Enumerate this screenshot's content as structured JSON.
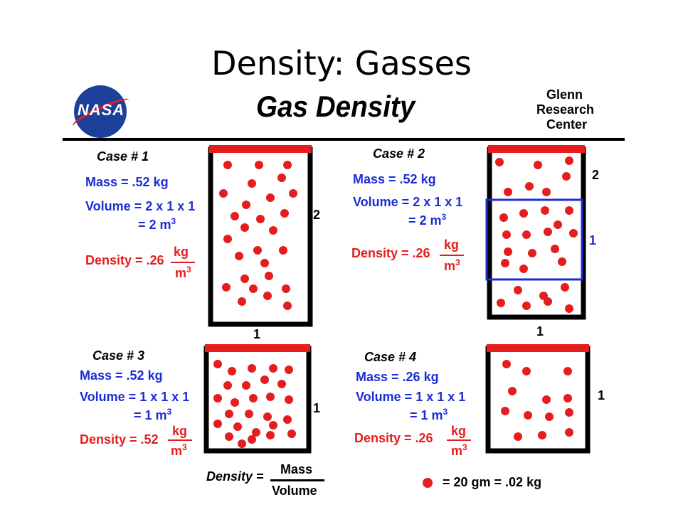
{
  "slide_title": "Density: Gasses",
  "diagram_title": "Gas  Density",
  "organization": [
    "Glenn",
    "Research",
    "Center"
  ],
  "logo_text": "NASA",
  "colors": {
    "blue": "#1c2cd6",
    "red": "#e41e1e",
    "container": "#000000",
    "lid": "#e41e1e"
  },
  "cases": [
    {
      "label": "Case  # 1",
      "mass": "Mass =  .52  kg",
      "volume": "Volume = 2 x 1 x 1",
      "volume_result": "= 2  m",
      "density": "Density = .26",
      "unit_num": "kg",
      "unit_den": "m",
      "height_label": "2",
      "width_label": "1"
    },
    {
      "label": "Case  # 2",
      "mass": "Mass =  .52  kg",
      "volume": "Volume = 2 x 1 x 1",
      "volume_result": "= 2  m",
      "density": "Density = .26",
      "unit_num": "kg",
      "unit_den": "m",
      "height_label": "2",
      "box_label": "1",
      "width_label": "1"
    },
    {
      "label": "Case  # 3",
      "mass": "Mass =  .52  kg",
      "volume": "Volume = 1 x 1 x 1",
      "volume_result": "= 1  m",
      "density": "Density = .52",
      "unit_num": "kg",
      "unit_den": "m",
      "height_label": "1"
    },
    {
      "label": "Case  # 4",
      "mass": "Mass =  .26  kg",
      "volume": "Volume = 1 x 1 x 1",
      "volume_result": "= 1  m",
      "density": "Density = .26",
      "unit_num": "kg",
      "unit_den": "m",
      "height_label": "1"
    }
  ],
  "exponent": "3",
  "formula": {
    "label": "Density =",
    "numerator": "Mass",
    "denominator": "Volume"
  },
  "legend": {
    "text": "=  20 gm  =  .02 kg"
  }
}
